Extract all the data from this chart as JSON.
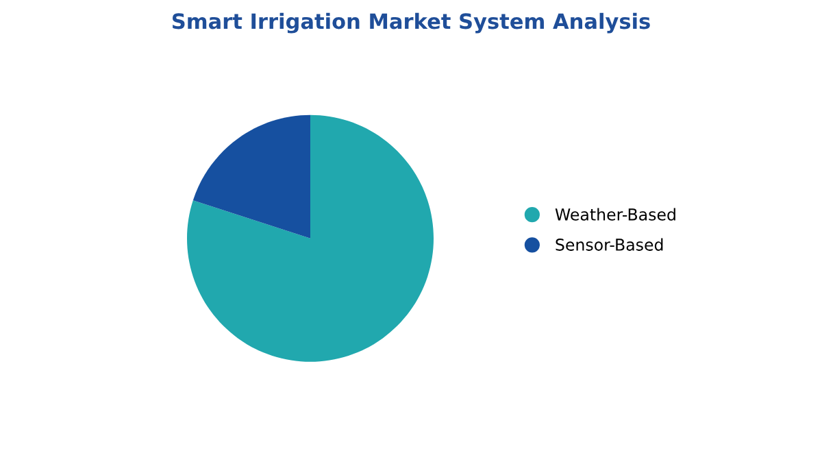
{
  "chart_data": {
    "type": "pie",
    "title": "Smart Irrigation Market System Analysis",
    "categories": [
      "Weather-Based",
      "Sensor-Based"
    ],
    "values": [
      80,
      20
    ],
    "colors": [
      "#21a8ae",
      "#1650a0"
    ],
    "legend": "right"
  }
}
